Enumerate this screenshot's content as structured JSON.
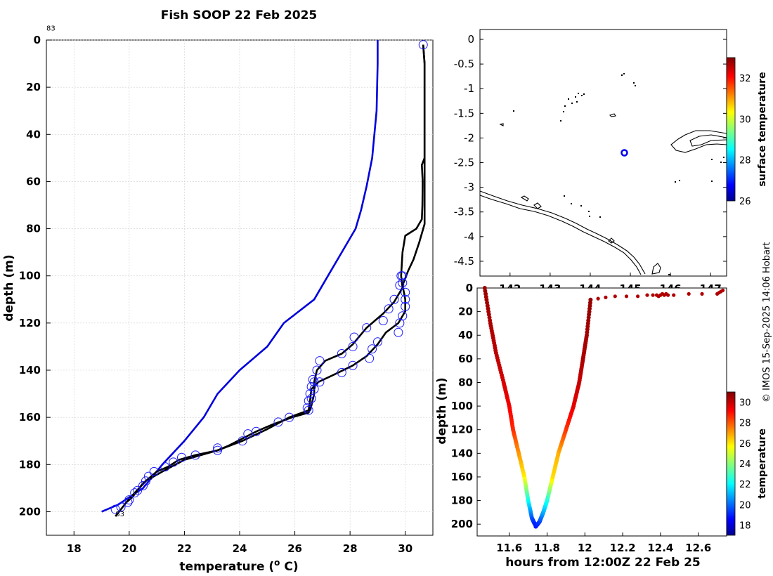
{
  "title": "Fish SOOP 22 Feb 2025",
  "credit": "© IMOS 15-Sep-2025 14:06 Hobart",
  "chart_data": [
    {
      "id": "profile",
      "type": "line",
      "xlabel": "temperature (",
      "xlabel_sup": "o",
      "xlabel_tail": " C)",
      "ylabel": "depth (m)",
      "xlim": [
        17,
        31
      ],
      "ylim": [
        0,
        210
      ],
      "xticks": [
        18,
        20,
        22,
        24,
        26,
        28,
        30
      ],
      "yticks": [
        0,
        20,
        40,
        60,
        80,
        100,
        120,
        140,
        160,
        180,
        200
      ],
      "grid": true,
      "labels": [
        {
          "text": "83",
          "x": 17,
          "y": -4
        },
        {
          "text": "83",
          "x": 19.5,
          "y": 202
        }
      ],
      "series": [
        {
          "name": "climatology",
          "color": "#0000dd",
          "points": [
            [
              29.0,
              0
            ],
            [
              29.0,
              10
            ],
            [
              28.96,
              30
            ],
            [
              28.8,
              50
            ],
            [
              28.6,
              62
            ],
            [
              28.4,
              72
            ],
            [
              28.2,
              80
            ],
            [
              27.7,
              90
            ],
            [
              27.2,
              100
            ],
            [
              26.7,
              110
            ],
            [
              25.6,
              120
            ],
            [
              25.0,
              130
            ],
            [
              24.0,
              140
            ],
            [
              23.2,
              150
            ],
            [
              22.7,
              160
            ],
            [
              22.0,
              170
            ],
            [
              21.2,
              180
            ],
            [
              20.5,
              190
            ],
            [
              19.6,
              197
            ],
            [
              19.0,
              200
            ]
          ]
        },
        {
          "name": "surface-descent",
          "color": "#000000",
          "points": [
            [
              30.65,
              2
            ],
            [
              30.7,
              10
            ],
            [
              30.7,
              30
            ],
            [
              30.7,
              50
            ],
            [
              30.6,
              53
            ],
            [
              30.63,
              60
            ],
            [
              30.62,
              70
            ],
            [
              30.6,
              76
            ],
            [
              30.4,
              80
            ],
            [
              30.0,
              83
            ],
            [
              29.9,
              90
            ],
            [
              29.85,
              100
            ],
            [
              29.9,
              105
            ],
            [
              29.6,
              111
            ],
            [
              29.2,
              116
            ],
            [
              28.6,
              122
            ],
            [
              28.1,
              129
            ],
            [
              27.7,
              133
            ],
            [
              27.1,
              136
            ],
            [
              26.8,
              140
            ],
            [
              26.7,
              145
            ],
            [
              26.7,
              150
            ],
            [
              26.6,
              155
            ],
            [
              26.5,
              158
            ],
            [
              25.9,
              160
            ],
            [
              25.2,
              163
            ],
            [
              24.6,
              166
            ],
            [
              24.1,
              169
            ],
            [
              23.6,
              172
            ],
            [
              23.2,
              174
            ],
            [
              22.4,
              176
            ],
            [
              21.8,
              178
            ],
            [
              21.4,
              181
            ],
            [
              21.0,
              183
            ],
            [
              20.7,
              186
            ],
            [
              20.5,
              188
            ],
            [
              20.3,
              191
            ],
            [
              20.1,
              194
            ],
            [
              19.9,
              196
            ],
            [
              19.7,
              199
            ],
            [
              19.5,
              202
            ]
          ]
        },
        {
          "name": "ascent",
          "color": "#000000",
          "points": [
            [
              19.9,
              196
            ],
            [
              20.2,
              192
            ],
            [
              20.6,
              187
            ],
            [
              21.2,
              183
            ],
            [
              22.0,
              178
            ],
            [
              23.2,
              174
            ],
            [
              24.1,
              170
            ],
            [
              25.0,
              165
            ],
            [
              25.8,
              160
            ],
            [
              26.5,
              157
            ],
            [
              26.55,
              153
            ],
            [
              26.6,
              148
            ],
            [
              26.85,
              145
            ],
            [
              27.4,
              142
            ],
            [
              28.1,
              138
            ],
            [
              28.6,
              134
            ],
            [
              29.0,
              129
            ],
            [
              29.3,
              124
            ],
            [
              29.75,
              120
            ],
            [
              30.0,
              115
            ],
            [
              30.0,
              110
            ],
            [
              29.9,
              104
            ],
            [
              30.1,
              98
            ],
            [
              30.3,
              93
            ],
            [
              30.5,
              86
            ],
            [
              30.7,
              78
            ],
            [
              30.7,
              60
            ],
            [
              30.7,
              40
            ],
            [
              30.7,
              10
            ],
            [
              30.65,
              2
            ]
          ]
        }
      ],
      "markers": [
        [
          30.65,
          2
        ],
        [
          29.85,
          100
        ],
        [
          29.8,
          104
        ],
        [
          29.6,
          110
        ],
        [
          29.4,
          114
        ],
        [
          29.2,
          119
        ],
        [
          28.6,
          122
        ],
        [
          28.15,
          126
        ],
        [
          28.1,
          130
        ],
        [
          27.7,
          133
        ],
        [
          26.9,
          136
        ],
        [
          26.8,
          140
        ],
        [
          26.65,
          144
        ],
        [
          26.6,
          147
        ],
        [
          26.55,
          150
        ],
        [
          26.5,
          153
        ],
        [
          26.45,
          156
        ],
        [
          25.8,
          160
        ],
        [
          25.4,
          162
        ],
        [
          24.6,
          166
        ],
        [
          24.3,
          167
        ],
        [
          24.1,
          170
        ],
        [
          23.2,
          173
        ],
        [
          23.2,
          174
        ],
        [
          22.4,
          176
        ],
        [
          21.9,
          177
        ],
        [
          21.6,
          179
        ],
        [
          21.3,
          181
        ],
        [
          20.9,
          183
        ],
        [
          20.7,
          185
        ],
        [
          20.6,
          187
        ],
        [
          20.5,
          189
        ],
        [
          20.3,
          191
        ],
        [
          20.2,
          192
        ],
        [
          20.0,
          195
        ],
        [
          19.95,
          196
        ],
        [
          19.7,
          198
        ],
        [
          19.5,
          199
        ],
        [
          29.9,
          100
        ],
        [
          29.9,
          103
        ],
        [
          30.0,
          107
        ],
        [
          30.0,
          110
        ],
        [
          30.0,
          113
        ],
        [
          29.9,
          117
        ],
        [
          29.8,
          120
        ],
        [
          29.75,
          124
        ],
        [
          29.0,
          128
        ],
        [
          28.8,
          131
        ],
        [
          28.7,
          135
        ],
        [
          28.1,
          138
        ],
        [
          27.7,
          141
        ],
        [
          26.9,
          145
        ],
        [
          26.7,
          148
        ],
        [
          26.6,
          152
        ],
        [
          26.5,
          157
        ],
        [
          26.7,
          145
        ]
      ]
    },
    {
      "id": "map",
      "type": "scatter",
      "xlim": [
        141.25,
        147.4
      ],
      "ylim": [
        -4.8,
        0.2
      ],
      "xticks": [
        142,
        143,
        144,
        145,
        146,
        147
      ],
      "yticks": [
        0,
        -0.5,
        -1,
        -1.5,
        -2,
        -2.5,
        -3,
        -3.5,
        -4,
        -4.5
      ],
      "ytick_labels": [
        "0",
        "-0.5",
        "-1",
        "-1.5",
        "-2",
        "-2.5",
        "-3",
        "-3.5",
        "-4",
        "-4.5"
      ],
      "xtick_labels": [
        "142",
        "143",
        "144",
        "145",
        "146",
        "147"
      ],
      "position": {
        "lon": 144.85,
        "lat": -2.3
      },
      "colorbar_label": "surface temperature",
      "colorbar_range": [
        26,
        33
      ],
      "colorbar_ticks": [
        26,
        28,
        30,
        32
      ]
    },
    {
      "id": "timeseries",
      "type": "scatter",
      "xlabel": "hours from 12:00Z 22 Feb 25",
      "ylabel": "depth (m)",
      "xlim": [
        11.43,
        12.75
      ],
      "ylim": [
        0,
        210
      ],
      "xticks": [
        11.6,
        11.8,
        12.0,
        12.2,
        12.4,
        12.6
      ],
      "xtick_labels": [
        "11.6",
        "11.8",
        "12",
        "12.2",
        "12.4",
        "12.6"
      ],
      "yticks": [
        0,
        20,
        40,
        60,
        80,
        100,
        120,
        140,
        160,
        180,
        200
      ],
      "colorbar_label": "temperature",
      "colorbar_range": [
        17,
        31
      ],
      "colorbar_ticks": [
        18,
        20,
        22,
        24,
        26,
        28,
        30
      ],
      "descent": [
        [
          11.47,
          0,
          30.6
        ],
        [
          11.5,
          30,
          30.4
        ],
        [
          11.53,
          55,
          30.2
        ],
        [
          11.57,
          80,
          29.8
        ],
        [
          11.6,
          100,
          29.4
        ],
        [
          11.62,
          120,
          28.7
        ],
        [
          11.65,
          140,
          27.2
        ],
        [
          11.68,
          160,
          26.0
        ],
        [
          11.7,
          180,
          22.5
        ],
        [
          11.72,
          195,
          20.0
        ],
        [
          11.735,
          200,
          19.2
        ]
      ],
      "ascent": [
        [
          11.74,
          202,
          19.0
        ],
        [
          11.76,
          198,
          19.5
        ],
        [
          11.78,
          190,
          21.0
        ],
        [
          11.8,
          180,
          22.5
        ],
        [
          11.83,
          160,
          26.2
        ],
        [
          11.86,
          140,
          26.8
        ],
        [
          11.9,
          120,
          28.5
        ],
        [
          11.94,
          100,
          29.6
        ],
        [
          11.97,
          80,
          30.0
        ],
        [
          11.99,
          60,
          30.4
        ],
        [
          12.01,
          40,
          30.5
        ],
        [
          12.03,
          10,
          30.7
        ]
      ],
      "surface_points": [
        [
          12.07,
          9
        ],
        [
          12.11,
          8
        ],
        [
          12.16,
          7
        ],
        [
          12.22,
          7
        ],
        [
          12.28,
          7
        ],
        [
          12.33,
          6
        ],
        [
          12.36,
          6
        ],
        [
          12.38,
          6
        ],
        [
          12.39,
          7
        ],
        [
          12.4,
          6
        ],
        [
          12.41,
          5
        ],
        [
          12.42,
          6
        ],
        [
          12.43,
          5
        ],
        [
          12.44,
          6
        ],
        [
          12.47,
          6
        ],
        [
          12.55,
          5
        ],
        [
          12.62,
          5
        ],
        [
          12.7,
          5
        ],
        [
          12.71,
          4
        ],
        [
          12.72,
          3
        ],
        [
          12.73,
          2
        ]
      ]
    }
  ]
}
